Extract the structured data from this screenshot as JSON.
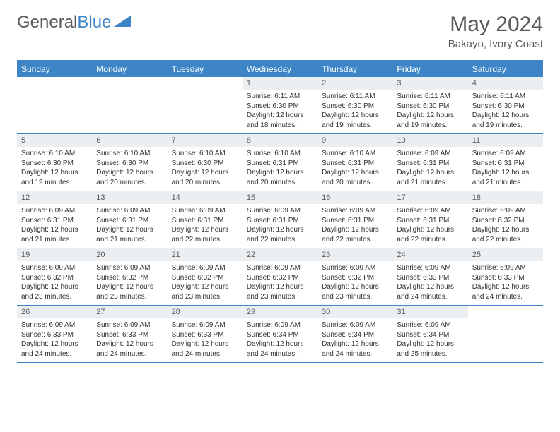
{
  "logo": {
    "word1": "General",
    "word2": "Blue"
  },
  "title": "May 2024",
  "location": "Bakayo, Ivory Coast",
  "colors": {
    "accent": "#3d85c6",
    "numBg": "#eceff1",
    "text": "#333",
    "muted": "#5a5a5a"
  },
  "daynames": [
    "Sunday",
    "Monday",
    "Tuesday",
    "Wednesday",
    "Thursday",
    "Friday",
    "Saturday"
  ],
  "weeks": [
    [
      {
        "n": "",
        "sr": "",
        "ss": "",
        "dl": ""
      },
      {
        "n": "",
        "sr": "",
        "ss": "",
        "dl": ""
      },
      {
        "n": "",
        "sr": "",
        "ss": "",
        "dl": ""
      },
      {
        "n": "1",
        "sr": "6:11 AM",
        "ss": "6:30 PM",
        "dl": "12 hours and 18 minutes."
      },
      {
        "n": "2",
        "sr": "6:11 AM",
        "ss": "6:30 PM",
        "dl": "12 hours and 19 minutes."
      },
      {
        "n": "3",
        "sr": "6:11 AM",
        "ss": "6:30 PM",
        "dl": "12 hours and 19 minutes."
      },
      {
        "n": "4",
        "sr": "6:11 AM",
        "ss": "6:30 PM",
        "dl": "12 hours and 19 minutes."
      }
    ],
    [
      {
        "n": "5",
        "sr": "6:10 AM",
        "ss": "6:30 PM",
        "dl": "12 hours and 19 minutes."
      },
      {
        "n": "6",
        "sr": "6:10 AM",
        "ss": "6:30 PM",
        "dl": "12 hours and 20 minutes."
      },
      {
        "n": "7",
        "sr": "6:10 AM",
        "ss": "6:30 PM",
        "dl": "12 hours and 20 minutes."
      },
      {
        "n": "8",
        "sr": "6:10 AM",
        "ss": "6:31 PM",
        "dl": "12 hours and 20 minutes."
      },
      {
        "n": "9",
        "sr": "6:10 AM",
        "ss": "6:31 PM",
        "dl": "12 hours and 20 minutes."
      },
      {
        "n": "10",
        "sr": "6:09 AM",
        "ss": "6:31 PM",
        "dl": "12 hours and 21 minutes."
      },
      {
        "n": "11",
        "sr": "6:09 AM",
        "ss": "6:31 PM",
        "dl": "12 hours and 21 minutes."
      }
    ],
    [
      {
        "n": "12",
        "sr": "6:09 AM",
        "ss": "6:31 PM",
        "dl": "12 hours and 21 minutes."
      },
      {
        "n": "13",
        "sr": "6:09 AM",
        "ss": "6:31 PM",
        "dl": "12 hours and 21 minutes."
      },
      {
        "n": "14",
        "sr": "6:09 AM",
        "ss": "6:31 PM",
        "dl": "12 hours and 22 minutes."
      },
      {
        "n": "15",
        "sr": "6:09 AM",
        "ss": "6:31 PM",
        "dl": "12 hours and 22 minutes."
      },
      {
        "n": "16",
        "sr": "6:09 AM",
        "ss": "6:31 PM",
        "dl": "12 hours and 22 minutes."
      },
      {
        "n": "17",
        "sr": "6:09 AM",
        "ss": "6:31 PM",
        "dl": "12 hours and 22 minutes."
      },
      {
        "n": "18",
        "sr": "6:09 AM",
        "ss": "6:32 PM",
        "dl": "12 hours and 22 minutes."
      }
    ],
    [
      {
        "n": "19",
        "sr": "6:09 AM",
        "ss": "6:32 PM",
        "dl": "12 hours and 23 minutes."
      },
      {
        "n": "20",
        "sr": "6:09 AM",
        "ss": "6:32 PM",
        "dl": "12 hours and 23 minutes."
      },
      {
        "n": "21",
        "sr": "6:09 AM",
        "ss": "6:32 PM",
        "dl": "12 hours and 23 minutes."
      },
      {
        "n": "22",
        "sr": "6:09 AM",
        "ss": "6:32 PM",
        "dl": "12 hours and 23 minutes."
      },
      {
        "n": "23",
        "sr": "6:09 AM",
        "ss": "6:32 PM",
        "dl": "12 hours and 23 minutes."
      },
      {
        "n": "24",
        "sr": "6:09 AM",
        "ss": "6:33 PM",
        "dl": "12 hours and 24 minutes."
      },
      {
        "n": "25",
        "sr": "6:09 AM",
        "ss": "6:33 PM",
        "dl": "12 hours and 24 minutes."
      }
    ],
    [
      {
        "n": "26",
        "sr": "6:09 AM",
        "ss": "6:33 PM",
        "dl": "12 hours and 24 minutes."
      },
      {
        "n": "27",
        "sr": "6:09 AM",
        "ss": "6:33 PM",
        "dl": "12 hours and 24 minutes."
      },
      {
        "n": "28",
        "sr": "6:09 AM",
        "ss": "6:33 PM",
        "dl": "12 hours and 24 minutes."
      },
      {
        "n": "29",
        "sr": "6:09 AM",
        "ss": "6:34 PM",
        "dl": "12 hours and 24 minutes."
      },
      {
        "n": "30",
        "sr": "6:09 AM",
        "ss": "6:34 PM",
        "dl": "12 hours and 24 minutes."
      },
      {
        "n": "31",
        "sr": "6:09 AM",
        "ss": "6:34 PM",
        "dl": "12 hours and 25 minutes."
      },
      {
        "n": "",
        "sr": "",
        "ss": "",
        "dl": ""
      }
    ]
  ],
  "labels": {
    "sunrise": "Sunrise:",
    "sunset": "Sunset:",
    "daylight": "Daylight:"
  }
}
